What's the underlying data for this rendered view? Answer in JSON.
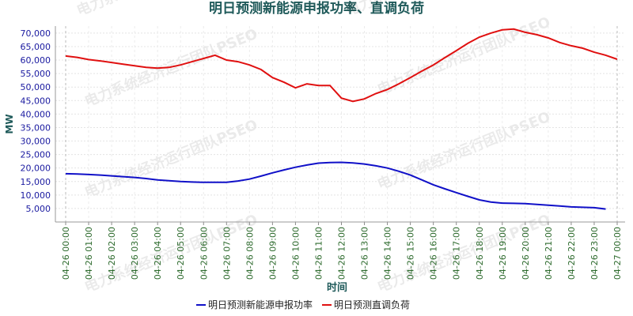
{
  "chart_data": {
    "type": "line",
    "title": "明日预测新能源申报功率、直调负荷",
    "ylabel": "MW",
    "xlabel": "时间",
    "watermark": "电力系统经济运行团队PSEO",
    "categories": [
      "04-26 00:00",
      null,
      "04-26 01:00",
      null,
      "04-26 02:00",
      null,
      "04-26 03:00",
      null,
      "04-26 04:00",
      null,
      "04-26 05:00",
      null,
      "04-26 06:00",
      null,
      "04-26 07:00",
      null,
      "04-26 08:00",
      null,
      "04-26 09:00",
      null,
      "04-26 10:00",
      null,
      "04-26 11:00",
      null,
      "04-26 12:00",
      null,
      "04-26 13:00",
      null,
      "04-26 14:00",
      null,
      "04-26 15:00",
      null,
      "04-26 16:00",
      null,
      "04-26 17:00",
      null,
      "04-26 18:00",
      null,
      "04-26 19:00",
      null,
      "04-26 20:00",
      null,
      "04-26 21:00",
      null,
      "04-26 22:00",
      null,
      "04-26 23:00",
      null,
      "04-27 00:00"
    ],
    "series": [
      {
        "name": "明日预测新能源申报功率",
        "color": "#1010c8",
        "values": [
          17900,
          17800,
          17600,
          17400,
          17100,
          16800,
          16500,
          16100,
          15600,
          15300,
          15000,
          14800,
          14700,
          14700,
          14700,
          15200,
          15900,
          17000,
          18200,
          19300,
          20300,
          21100,
          21800,
          22000,
          22100,
          21900,
          21500,
          20800,
          20000,
          18800,
          17400,
          15600,
          13800,
          12300,
          10900,
          9500,
          8200,
          7400,
          7000,
          6900,
          6800,
          6500,
          6200,
          5900,
          5600,
          5450,
          5300,
          4800,
          null
        ]
      },
      {
        "name": "明日预测直调负荷",
        "color": "#e01010",
        "values": [
          61500,
          61000,
          60200,
          59700,
          59100,
          58500,
          57900,
          57300,
          57000,
          57300,
          58200,
          59400,
          60600,
          61800,
          60000,
          59400,
          58200,
          56500,
          53500,
          51800,
          49700,
          51200,
          50600,
          50600,
          45900,
          44700,
          45600,
          47600,
          49100,
          51200,
          53500,
          55900,
          58200,
          60900,
          63500,
          66200,
          68500,
          70000,
          71200,
          71500,
          70300,
          69400,
          68200,
          66500,
          65300,
          64400,
          62900,
          61800,
          60300
        ]
      }
    ],
    "ylim": [
      0,
      72600
    ],
    "yticks": [
      {
        "value": 5000,
        "label": "5,000"
      },
      {
        "value": 10000,
        "label": "10,000"
      },
      {
        "value": 15000,
        "label": "15,000"
      },
      {
        "value": 20000,
        "label": "20,000"
      },
      {
        "value": 25000,
        "label": "25,000"
      },
      {
        "value": 30000,
        "label": "30,000"
      },
      {
        "value": 35000,
        "label": "35,000"
      },
      {
        "value": 40000,
        "label": "40,000"
      },
      {
        "value": 45000,
        "label": "45,000"
      },
      {
        "value": 50000,
        "label": "50,000"
      },
      {
        "value": 55000,
        "label": "55,000"
      },
      {
        "value": 60000,
        "label": "60,000"
      },
      {
        "value": 65000,
        "label": "65,000"
      },
      {
        "value": 70000,
        "label": "70,000"
      }
    ],
    "grid": true,
    "legend": "bottom"
  }
}
